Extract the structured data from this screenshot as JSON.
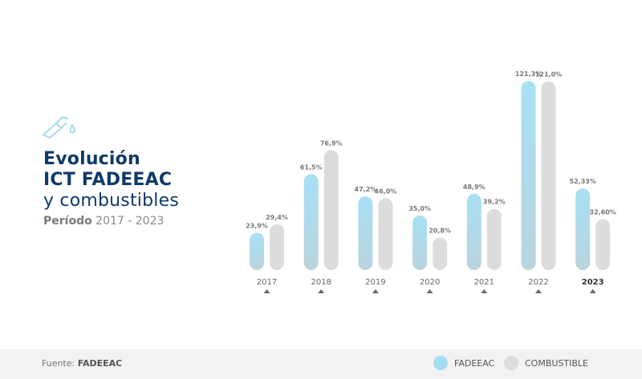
{
  "header": {
    "title_line1": "Evolución",
    "title_line2": "ICT FADEEAC",
    "title_line3": "y combustibles",
    "period_label": "Período",
    "period_range": "2017 - 2023",
    "icon": "fuel-nozzle-icon"
  },
  "footer": {
    "source_label": "Fuente:",
    "source_value": "FADEEAC"
  },
  "colors": {
    "fadeeac": "#a6dcf0",
    "combustible": "#dcdcdc",
    "title": "#0f3a6b"
  },
  "chart_data": {
    "type": "bar",
    "categories": [
      "2017",
      "2018",
      "2019",
      "2020",
      "2021",
      "2022",
      "2023"
    ],
    "series": [
      {
        "name": "FADEEAC",
        "values": [
          23.9,
          61.5,
          47.2,
          35.0,
          48.9,
          121.3,
          52.33
        ],
        "labels": [
          "23,9%",
          "61,5%",
          "47,2%",
          "35,0%",
          "48,9%",
          "121,3%",
          "52,33%"
        ]
      },
      {
        "name": "COMBUSTIBLE",
        "values": [
          29.4,
          76.9,
          46.0,
          20.8,
          39.2,
          121.0,
          32.6
        ],
        "labels": [
          "29,4%",
          "76,9%",
          "46,0%",
          "20,8%",
          "39,2%",
          "121,0%",
          "32,60%"
        ]
      }
    ],
    "ylim": [
      0,
      125
    ],
    "highlighted_category": "2023"
  }
}
